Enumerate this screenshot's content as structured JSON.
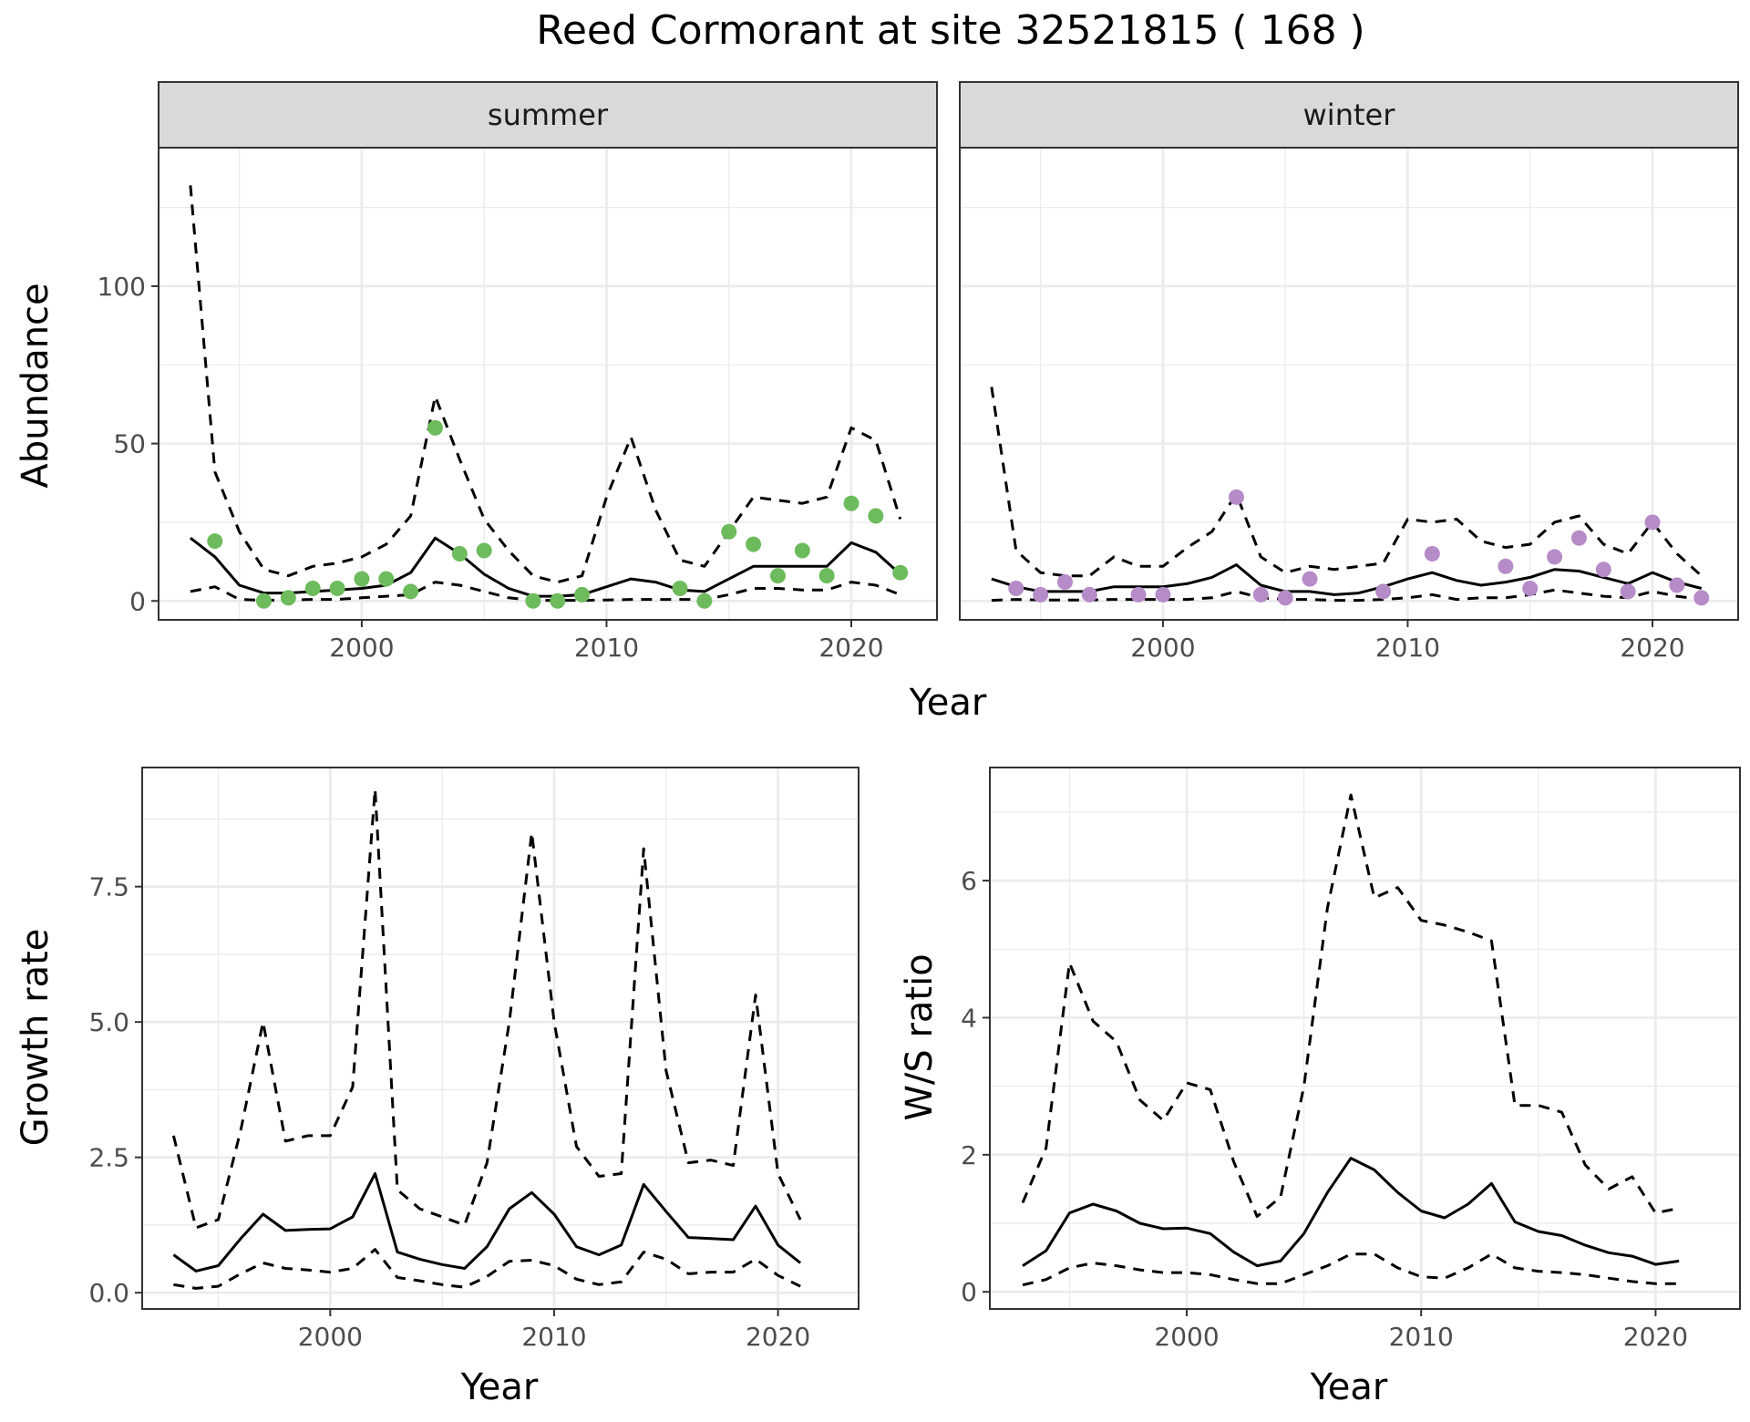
{
  "title": "Reed Cormorant at site 32521815 ( 168 )",
  "colors": {
    "summer_points": "#6DBB5C",
    "winter_points": "#B58BC8",
    "lines": "#000000"
  },
  "chart_data": [
    {
      "type": "line",
      "panel": "summer",
      "facet_label": "summer",
      "xlabel": "Year",
      "ylabel": "Abundance",
      "xlim": [
        1991.7,
        2023.5
      ],
      "ylim": [
        -6,
        144
      ],
      "x_ticks": [
        2000,
        2010,
        2020
      ],
      "y_ticks": [
        0,
        50,
        100
      ],
      "grid": true,
      "mean": {
        "x": [
          1993,
          1994,
          1995,
          1996,
          1997,
          1998,
          1999,
          2000,
          2001,
          2002,
          2003,
          2004,
          2005,
          2006,
          2007,
          2008,
          2009,
          2010,
          2011,
          2012,
          2013,
          2014,
          2015,
          2016,
          2017,
          2018,
          2019,
          2020,
          2021,
          2022
        ],
        "y": [
          20,
          14,
          5,
          2.5,
          2.5,
          3,
          3.5,
          4,
          5,
          9,
          20,
          15,
          8.5,
          4,
          1.5,
          1.5,
          2,
          4.5,
          7,
          6,
          3.5,
          3,
          7,
          11,
          11,
          11,
          11,
          18.5,
          15.5,
          8.5
        ]
      },
      "upper": {
        "x": [
          1993,
          1994,
          1995,
          1996,
          1997,
          1998,
          1999,
          2000,
          2001,
          2002,
          2003,
          2004,
          2005,
          2006,
          2007,
          2008,
          2009,
          2010,
          2011,
          2012,
          2013,
          2014,
          2015,
          2016,
          2017,
          2018,
          2019,
          2020,
          2021,
          2022
        ],
        "y": [
          132,
          41,
          22,
          10,
          8,
          11,
          12,
          14,
          18,
          27,
          65,
          45,
          26,
          16,
          8,
          6,
          8,
          33,
          52,
          29,
          13,
          11,
          22,
          33,
          32,
          31,
          33,
          55,
          51,
          26
        ]
      },
      "lower": {
        "x": [
          1993,
          1994,
          1995,
          1996,
          1997,
          1998,
          1999,
          2000,
          2001,
          2002,
          2003,
          2004,
          2005,
          2006,
          2007,
          2008,
          2009,
          2010,
          2011,
          2012,
          2013,
          2014,
          2015,
          2016,
          2017,
          2018,
          2019,
          2020,
          2021,
          2022
        ],
        "y": [
          3,
          4.5,
          0.5,
          0.2,
          0.3,
          0.5,
          0.5,
          1,
          1.5,
          2,
          6,
          5,
          3,
          1,
          0.2,
          0.2,
          0.2,
          0.3,
          0.5,
          0.5,
          0.5,
          0.5,
          2,
          4,
          4,
          3.5,
          3.5,
          6,
          5,
          2
        ]
      },
      "points": {
        "x": [
          1994,
          1996,
          1997,
          1998,
          1999,
          2000,
          2001,
          2002,
          2003,
          2004,
          2005,
          2007,
          2008,
          2009,
          2013,
          2014,
          2015,
          2016,
          2017,
          2018,
          2019,
          2020,
          2021,
          2022
        ],
        "y": [
          19,
          0,
          1,
          4,
          4,
          7,
          7,
          3,
          55,
          15,
          16,
          0,
          0,
          2,
          4,
          0,
          22,
          18,
          8,
          16,
          8,
          31,
          27,
          9
        ]
      }
    },
    {
      "type": "line",
      "panel": "winter",
      "facet_label": "winter",
      "xlabel": "Year",
      "ylabel": "Abundance",
      "xlim": [
        1991.7,
        2023.5
      ],
      "ylim": [
        -6,
        144
      ],
      "x_ticks": [
        2000,
        2010,
        2020
      ],
      "y_ticks": [
        0,
        50,
        100
      ],
      "grid": true,
      "mean": {
        "x": [
          1993,
          1994,
          1995,
          1996,
          1997,
          1998,
          1999,
          2000,
          2001,
          2002,
          2003,
          2004,
          2005,
          2006,
          2007,
          2008,
          2009,
          2010,
          2011,
          2012,
          2013,
          2014,
          2015,
          2016,
          2017,
          2018,
          2019,
          2020,
          2021,
          2022
        ],
        "y": [
          7,
          4.5,
          3,
          3,
          3,
          4.5,
          4.5,
          4.5,
          5.5,
          7.5,
          11.5,
          5,
          3,
          3,
          2,
          2.5,
          4.5,
          7,
          9,
          6.5,
          5,
          6,
          7.5,
          10,
          9.5,
          7.5,
          5.5,
          9,
          6,
          4
        ]
      },
      "upper": {
        "x": [
          1993,
          1994,
          1995,
          1996,
          1997,
          1998,
          1999,
          2000,
          2001,
          2002,
          2003,
          2004,
          2005,
          2006,
          2007,
          2008,
          2009,
          2010,
          2011,
          2012,
          2013,
          2014,
          2015,
          2016,
          2017,
          2018,
          2019,
          2020,
          2021,
          2022
        ],
        "y": [
          68,
          16,
          9,
          8,
          8,
          14,
          11,
          11,
          17,
          22,
          34,
          14,
          9,
          11,
          10,
          11,
          12,
          26,
          25,
          26,
          19,
          17,
          18,
          25,
          27,
          18,
          15,
          25,
          15,
          8
        ]
      },
      "lower": {
        "x": [
          1993,
          1994,
          1995,
          1996,
          1997,
          1998,
          1999,
          2000,
          2001,
          2002,
          2003,
          2004,
          2005,
          2006,
          2007,
          2008,
          2009,
          2010,
          2011,
          2012,
          2013,
          2014,
          2015,
          2016,
          2017,
          2018,
          2019,
          2020,
          2021,
          2022
        ],
        "y": [
          0.2,
          0.5,
          0.3,
          0.3,
          0.3,
          0.5,
          0.5,
          0.5,
          0.5,
          1,
          3,
          1,
          0.5,
          0.5,
          0.2,
          0.2,
          0.5,
          1,
          2,
          0.5,
          1,
          1,
          2,
          3.5,
          2.5,
          1.5,
          1,
          3,
          1.5,
          0.5
        ]
      },
      "points": {
        "x": [
          1994,
          1995,
          1996,
          1997,
          1999,
          2000,
          2003,
          2004,
          2005,
          2006,
          2009,
          2011,
          2014,
          2015,
          2016,
          2017,
          2018,
          2019,
          2020,
          2021,
          2022
        ],
        "y": [
          4,
          2,
          6,
          2,
          2,
          2,
          33,
          2,
          1,
          7,
          3,
          15,
          11,
          4,
          14,
          20,
          10,
          3,
          25,
          5,
          1
        ]
      }
    },
    {
      "type": "line",
      "panel": "growth",
      "xlabel": "Year",
      "ylabel": "Growth rate",
      "xlim": [
        1991.6,
        2023.6
      ],
      "ylim": [
        -0.3,
        9.7
      ],
      "x_ticks": [
        2000,
        2010,
        2020
      ],
      "y_ticks": [
        0.0,
        2.5,
        5.0,
        7.5
      ],
      "y_tick_labels": [
        "0.0",
        "2.5",
        "5.0",
        "7.5"
      ],
      "grid": true,
      "mean": {
        "x": [
          1993,
          1994,
          1995,
          1996,
          1997,
          1998,
          1999,
          2000,
          2001,
          2002,
          2003,
          2004,
          2005,
          2006,
          2007,
          2008,
          2009,
          2010,
          2011,
          2012,
          2013,
          2014,
          2015,
          2016,
          2017,
          2018,
          2019,
          2020,
          2021
        ],
        "y": [
          0.7,
          0.4,
          0.5,
          1.0,
          1.45,
          1.15,
          1.17,
          1.18,
          1.4,
          2.2,
          0.75,
          0.62,
          0.52,
          0.45,
          0.85,
          1.55,
          1.85,
          1.45,
          0.85,
          0.7,
          0.88,
          2.0,
          1.5,
          1.02,
          1.0,
          0.98,
          1.6,
          0.88,
          0.55
        ]
      },
      "upper": {
        "x": [
          1993,
          1994,
          1995,
          1996,
          1997,
          1998,
          1999,
          2000,
          2001,
          2002,
          2003,
          2004,
          2005,
          2006,
          2007,
          2008,
          2009,
          2010,
          2011,
          2012,
          2013,
          2014,
          2015,
          2016,
          2017,
          2018,
          2019,
          2020,
          2021
        ],
        "y": [
          2.9,
          1.2,
          1.35,
          3.0,
          5.0,
          2.8,
          2.9,
          2.9,
          3.8,
          9.3,
          1.9,
          1.55,
          1.4,
          1.25,
          2.4,
          5.0,
          8.5,
          5.0,
          2.7,
          2.15,
          2.2,
          8.2,
          4.1,
          2.4,
          2.45,
          2.35,
          5.5,
          2.2,
          1.35
        ]
      },
      "lower": {
        "x": [
          1993,
          1994,
          1995,
          1996,
          1997,
          1998,
          1999,
          2000,
          2001,
          2002,
          2003,
          2004,
          2005,
          2006,
          2007,
          2008,
          2009,
          2010,
          2011,
          2012,
          2013,
          2014,
          2015,
          2016,
          2017,
          2018,
          2019,
          2020,
          2021
        ],
        "y": [
          0.15,
          0.08,
          0.12,
          0.35,
          0.55,
          0.45,
          0.42,
          0.38,
          0.45,
          0.8,
          0.28,
          0.22,
          0.15,
          0.1,
          0.3,
          0.58,
          0.6,
          0.5,
          0.25,
          0.15,
          0.2,
          0.75,
          0.62,
          0.35,
          0.38,
          0.38,
          0.62,
          0.32,
          0.12
        ]
      }
    },
    {
      "type": "line",
      "panel": "ws_ratio",
      "xlabel": "Year",
      "ylabel": "W/S ratio",
      "xlim": [
        1991.6,
        2023.6
      ],
      "ylim": [
        -0.25,
        7.65
      ],
      "x_ticks": [
        2000,
        2010,
        2020
      ],
      "y_ticks": [
        0,
        2,
        4,
        6
      ],
      "grid": true,
      "mean": {
        "x": [
          1993,
          1994,
          1995,
          1996,
          1997,
          1998,
          1999,
          2000,
          2001,
          2002,
          2003,
          2004,
          2005,
          2006,
          2007,
          2008,
          2009,
          2010,
          2011,
          2012,
          2013,
          2014,
          2015,
          2016,
          2017,
          2018,
          2019,
          2020,
          2021
        ],
        "y": [
          0.38,
          0.6,
          1.15,
          1.28,
          1.18,
          1.0,
          0.92,
          0.93,
          0.85,
          0.58,
          0.38,
          0.45,
          0.85,
          1.45,
          1.95,
          1.78,
          1.45,
          1.18,
          1.08,
          1.28,
          1.58,
          1.02,
          0.88,
          0.82,
          0.68,
          0.57,
          0.52,
          0.4,
          0.45
        ]
      },
      "upper": {
        "x": [
          1993,
          1994,
          1995,
          1996,
          1997,
          1998,
          1999,
          2000,
          2001,
          2002,
          2003,
          2004,
          2005,
          2006,
          2007,
          2008,
          2009,
          2010,
          2011,
          2012,
          2013,
          2014,
          2015,
          2016,
          2017,
          2018,
          2019,
          2020,
          2021
        ],
        "y": [
          1.3,
          2.1,
          4.8,
          3.95,
          3.65,
          2.8,
          2.5,
          3.05,
          2.95,
          1.9,
          1.1,
          1.38,
          3.0,
          5.6,
          7.25,
          5.75,
          5.9,
          5.42,
          5.35,
          5.25,
          5.12,
          2.72,
          2.72,
          2.62,
          1.85,
          1.5,
          1.68,
          1.15,
          1.22
        ]
      },
      "lower": {
        "x": [
          1993,
          1994,
          1995,
          1996,
          1997,
          1998,
          1999,
          2000,
          2001,
          2002,
          2003,
          2004,
          2005,
          2006,
          2007,
          2008,
          2009,
          2010,
          2011,
          2012,
          2013,
          2014,
          2015,
          2016,
          2017,
          2018,
          2019,
          2020,
          2021
        ],
        "y": [
          0.1,
          0.18,
          0.35,
          0.42,
          0.38,
          0.32,
          0.28,
          0.28,
          0.25,
          0.18,
          0.12,
          0.12,
          0.25,
          0.38,
          0.55,
          0.55,
          0.35,
          0.22,
          0.2,
          0.35,
          0.55,
          0.35,
          0.3,
          0.28,
          0.25,
          0.2,
          0.15,
          0.12,
          0.12
        ]
      }
    }
  ]
}
